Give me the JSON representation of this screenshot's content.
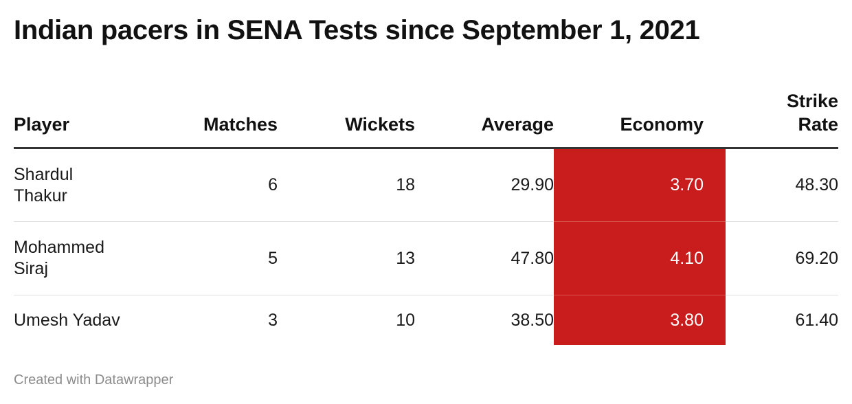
{
  "title": "Indian pacers in SENA Tests since September 1, 2021",
  "footer": "Created with Datawrapper",
  "colors": {
    "economy_highlight": "#c91d1d",
    "header_rule": "#333333",
    "row_rule": "#e0e0e0"
  },
  "chart_data": {
    "type": "table",
    "columns": [
      "Player",
      "Matches",
      "Wickets",
      "Average",
      "Economy",
      "Strike Rate"
    ],
    "highlighted_column": "Economy",
    "rows": [
      {
        "player": "Shardul Thakur",
        "matches": "6",
        "wickets": "18",
        "average": "29.90",
        "economy": "3.70",
        "strike_rate": "48.30"
      },
      {
        "player": "Mohammed Siraj",
        "matches": "5",
        "wickets": "13",
        "average": "47.80",
        "economy": "4.10",
        "strike_rate": "69.20"
      },
      {
        "player": "Umesh Yadav",
        "matches": "3",
        "wickets": "10",
        "average": "38.50",
        "economy": "3.80",
        "strike_rate": "61.40"
      }
    ]
  }
}
